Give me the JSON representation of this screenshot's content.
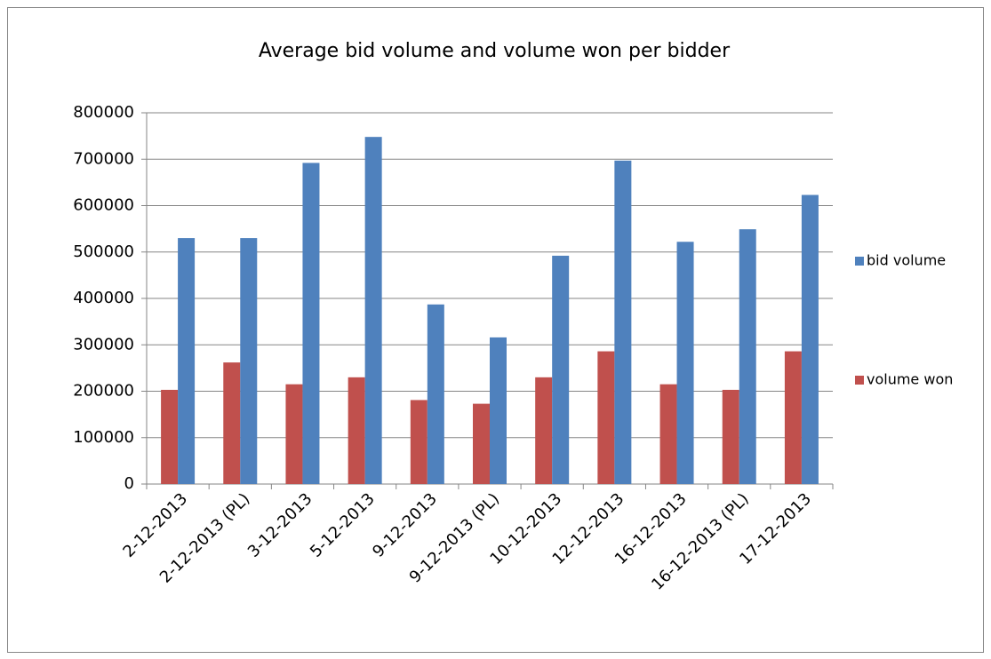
{
  "chart_data": {
    "type": "bar",
    "title": "Average bid volume and volume won per bidder",
    "categories": [
      "2-12-2013",
      "2-12-2013 (PL)",
      "3-12-2013",
      "5-12-2013",
      "9-12-2013",
      "9-12-2013 (PL)",
      "10-12-2013",
      "12-12-2013",
      "16-12-2013",
      "16-12-2013 (PL)",
      "17-12-2013"
    ],
    "series": [
      {
        "name": "bid volume",
        "color": "#4f81bd",
        "values": [
          530000,
          530000,
          692000,
          748000,
          387000,
          316000,
          492000,
          697000,
          522000,
          549000,
          623000
        ]
      },
      {
        "name": "volume won",
        "color": "#c0504d",
        "values": [
          203000,
          262000,
          215000,
          230000,
          181000,
          173000,
          230000,
          286000,
          215000,
          203000,
          286000
        ]
      }
    ],
    "ylim": [
      0,
      800000
    ],
    "yticks": [
      0,
      100000,
      200000,
      300000,
      400000,
      500000,
      600000,
      700000,
      800000
    ],
    "grid": true,
    "legend": "right"
  }
}
